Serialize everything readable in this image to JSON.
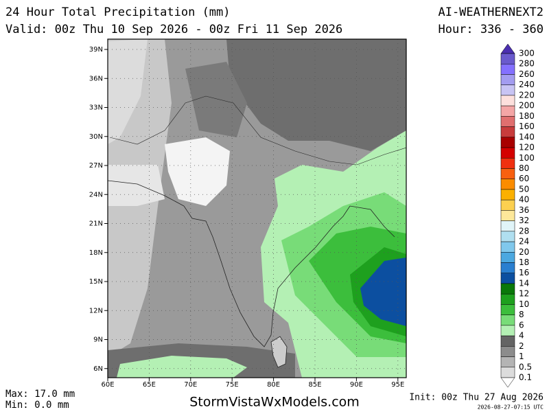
{
  "header": {
    "title": "24 Hour Total Precipitation (mm)",
    "valid": "Valid: 00z Thu 10 Sep 2026 - 00z Fri 11 Sep 2026",
    "model": "AI-WEATHERNEXT2",
    "hour": "Hour: 336 - 360"
  },
  "map": {
    "lat_labels": [
      "39N",
      "36N",
      "33N",
      "30N",
      "27N",
      "24N",
      "21N",
      "18N",
      "15N",
      "12N",
      "9N",
      "6N"
    ],
    "lon_labels": [
      "60E",
      "65E",
      "70E",
      "75E",
      "80E",
      "85E",
      "90E",
      "95E"
    ]
  },
  "legend": {
    "levels": [
      {
        "label": "300",
        "color": "#4b2fb0"
      },
      {
        "label": "280",
        "color": "#6a5acd"
      },
      {
        "label": "260",
        "color": "#8470ff"
      },
      {
        "label": "240",
        "color": "#a39cf0"
      },
      {
        "label": "220",
        "color": "#c8c4f4"
      },
      {
        "label": "200",
        "color": "#fde0dd"
      },
      {
        "label": "180",
        "color": "#f4a6a6"
      },
      {
        "label": "160",
        "color": "#e06f6f"
      },
      {
        "label": "140",
        "color": "#c83c3c"
      },
      {
        "label": "120",
        "color": "#a80000"
      },
      {
        "label": "100",
        "color": "#d40000"
      },
      {
        "label": "80",
        "color": "#f03010"
      },
      {
        "label": "60",
        "color": "#f86010"
      },
      {
        "label": "50",
        "color": "#fb8c00"
      },
      {
        "label": "40",
        "color": "#fbb000"
      },
      {
        "label": "36",
        "color": "#fcd050"
      },
      {
        "label": "32",
        "color": "#fde89a"
      },
      {
        "label": "28",
        "color": "#e0f4f8"
      },
      {
        "label": "24",
        "color": "#b0dff0"
      },
      {
        "label": "20",
        "color": "#80c8ec"
      },
      {
        "label": "18",
        "color": "#4ca8e0"
      },
      {
        "label": "16",
        "color": "#2a7fd0"
      },
      {
        "label": "14",
        "color": "#0c4fa0"
      },
      {
        "label": "12",
        "color": "#0a780a"
      },
      {
        "label": "10",
        "color": "#1ea01e"
      },
      {
        "label": "8",
        "color": "#3cbe3c"
      },
      {
        "label": "6",
        "color": "#78dc78"
      },
      {
        "label": "4",
        "color": "#b4f0b4"
      },
      {
        "label": "2",
        "color": "#646464"
      },
      {
        "label": "1",
        "color": "#8c8c8c"
      },
      {
        "label": "0.5",
        "color": "#b4b4b4"
      },
      {
        "label": "0.1",
        "color": "#dcdcdc"
      }
    ]
  },
  "footer": {
    "max": "Max: 17.0 mm",
    "min": "Min: 0.0 mm",
    "site": "StormVistaWxModels.com",
    "init": "Init: 00z Thu 27 Aug 2026",
    "stamp": "2026-08-27-07:15 UTC"
  }
}
